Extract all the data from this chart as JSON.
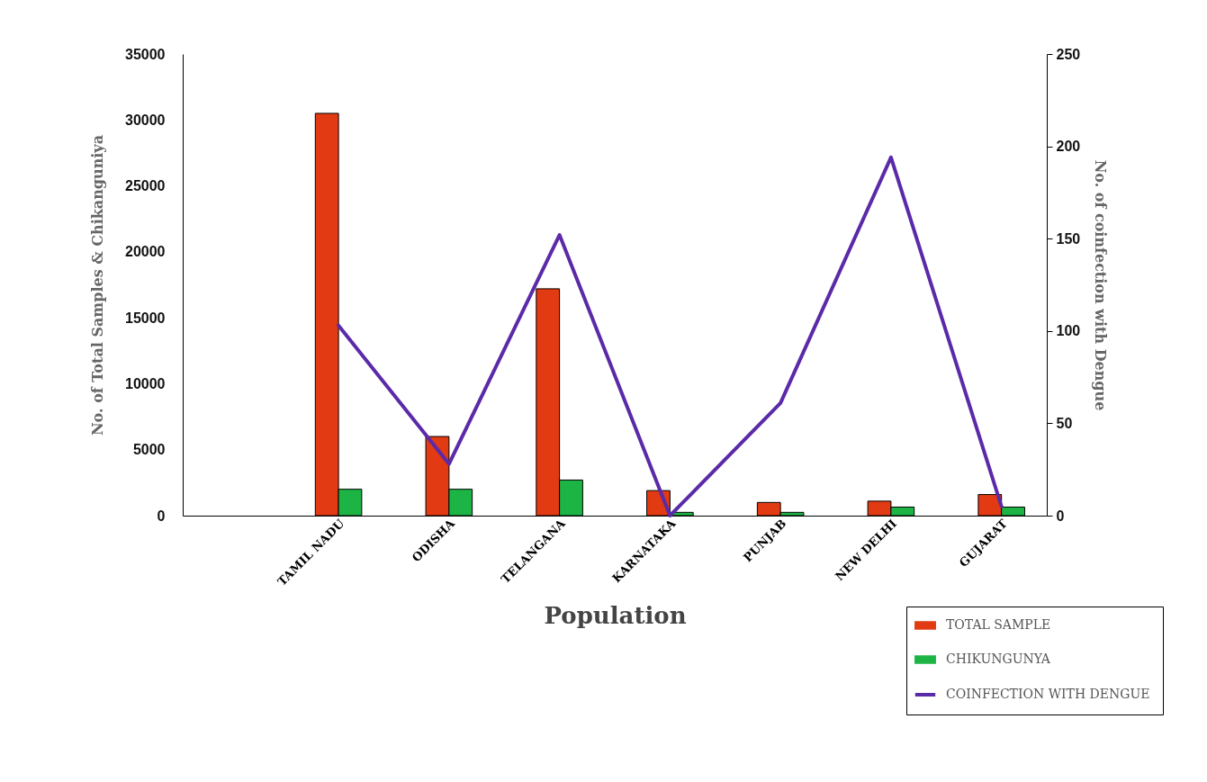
{
  "chart_data": {
    "type": "bar",
    "xlabel": "Population",
    "ylabel": "No. of Total Samples & Chikanguniya",
    "y2label": "No. of coinfection with Dengue",
    "categories": [
      null,
      "TAMIL NADU",
      "ODISHA",
      "TELANGANA",
      "KARNATAKA",
      "PUNJAB",
      "NEW DELHI",
      "GUJARAT"
    ],
    "series": [
      {
        "name": "TOTAL SAMPLE",
        "color": "#e23a12",
        "values": [
          null,
          30500,
          6000,
          17200,
          1900,
          1000,
          1100,
          1600
        ]
      },
      {
        "name": "CHIKUNGUNYA",
        "color": "#1db446",
        "values": [
          null,
          2000,
          2000,
          2700,
          250,
          250,
          650,
          650
        ]
      },
      {
        "name": "COINFECTION WITH DENGUE",
        "type": "line",
        "axis": "y2",
        "color": "#5b2aa8",
        "values": [
          null,
          103,
          28,
          152,
          0,
          61,
          194,
          5
        ]
      }
    ],
    "ylim": [
      0,
      35000
    ],
    "yticks": [
      0,
      5000,
      10000,
      15000,
      20000,
      25000,
      30000,
      35000
    ],
    "y2lim": [
      0,
      250
    ],
    "y2ticks": [
      0,
      50,
      100,
      150,
      200,
      250
    ],
    "grid": false,
    "legend": "bottom right"
  }
}
